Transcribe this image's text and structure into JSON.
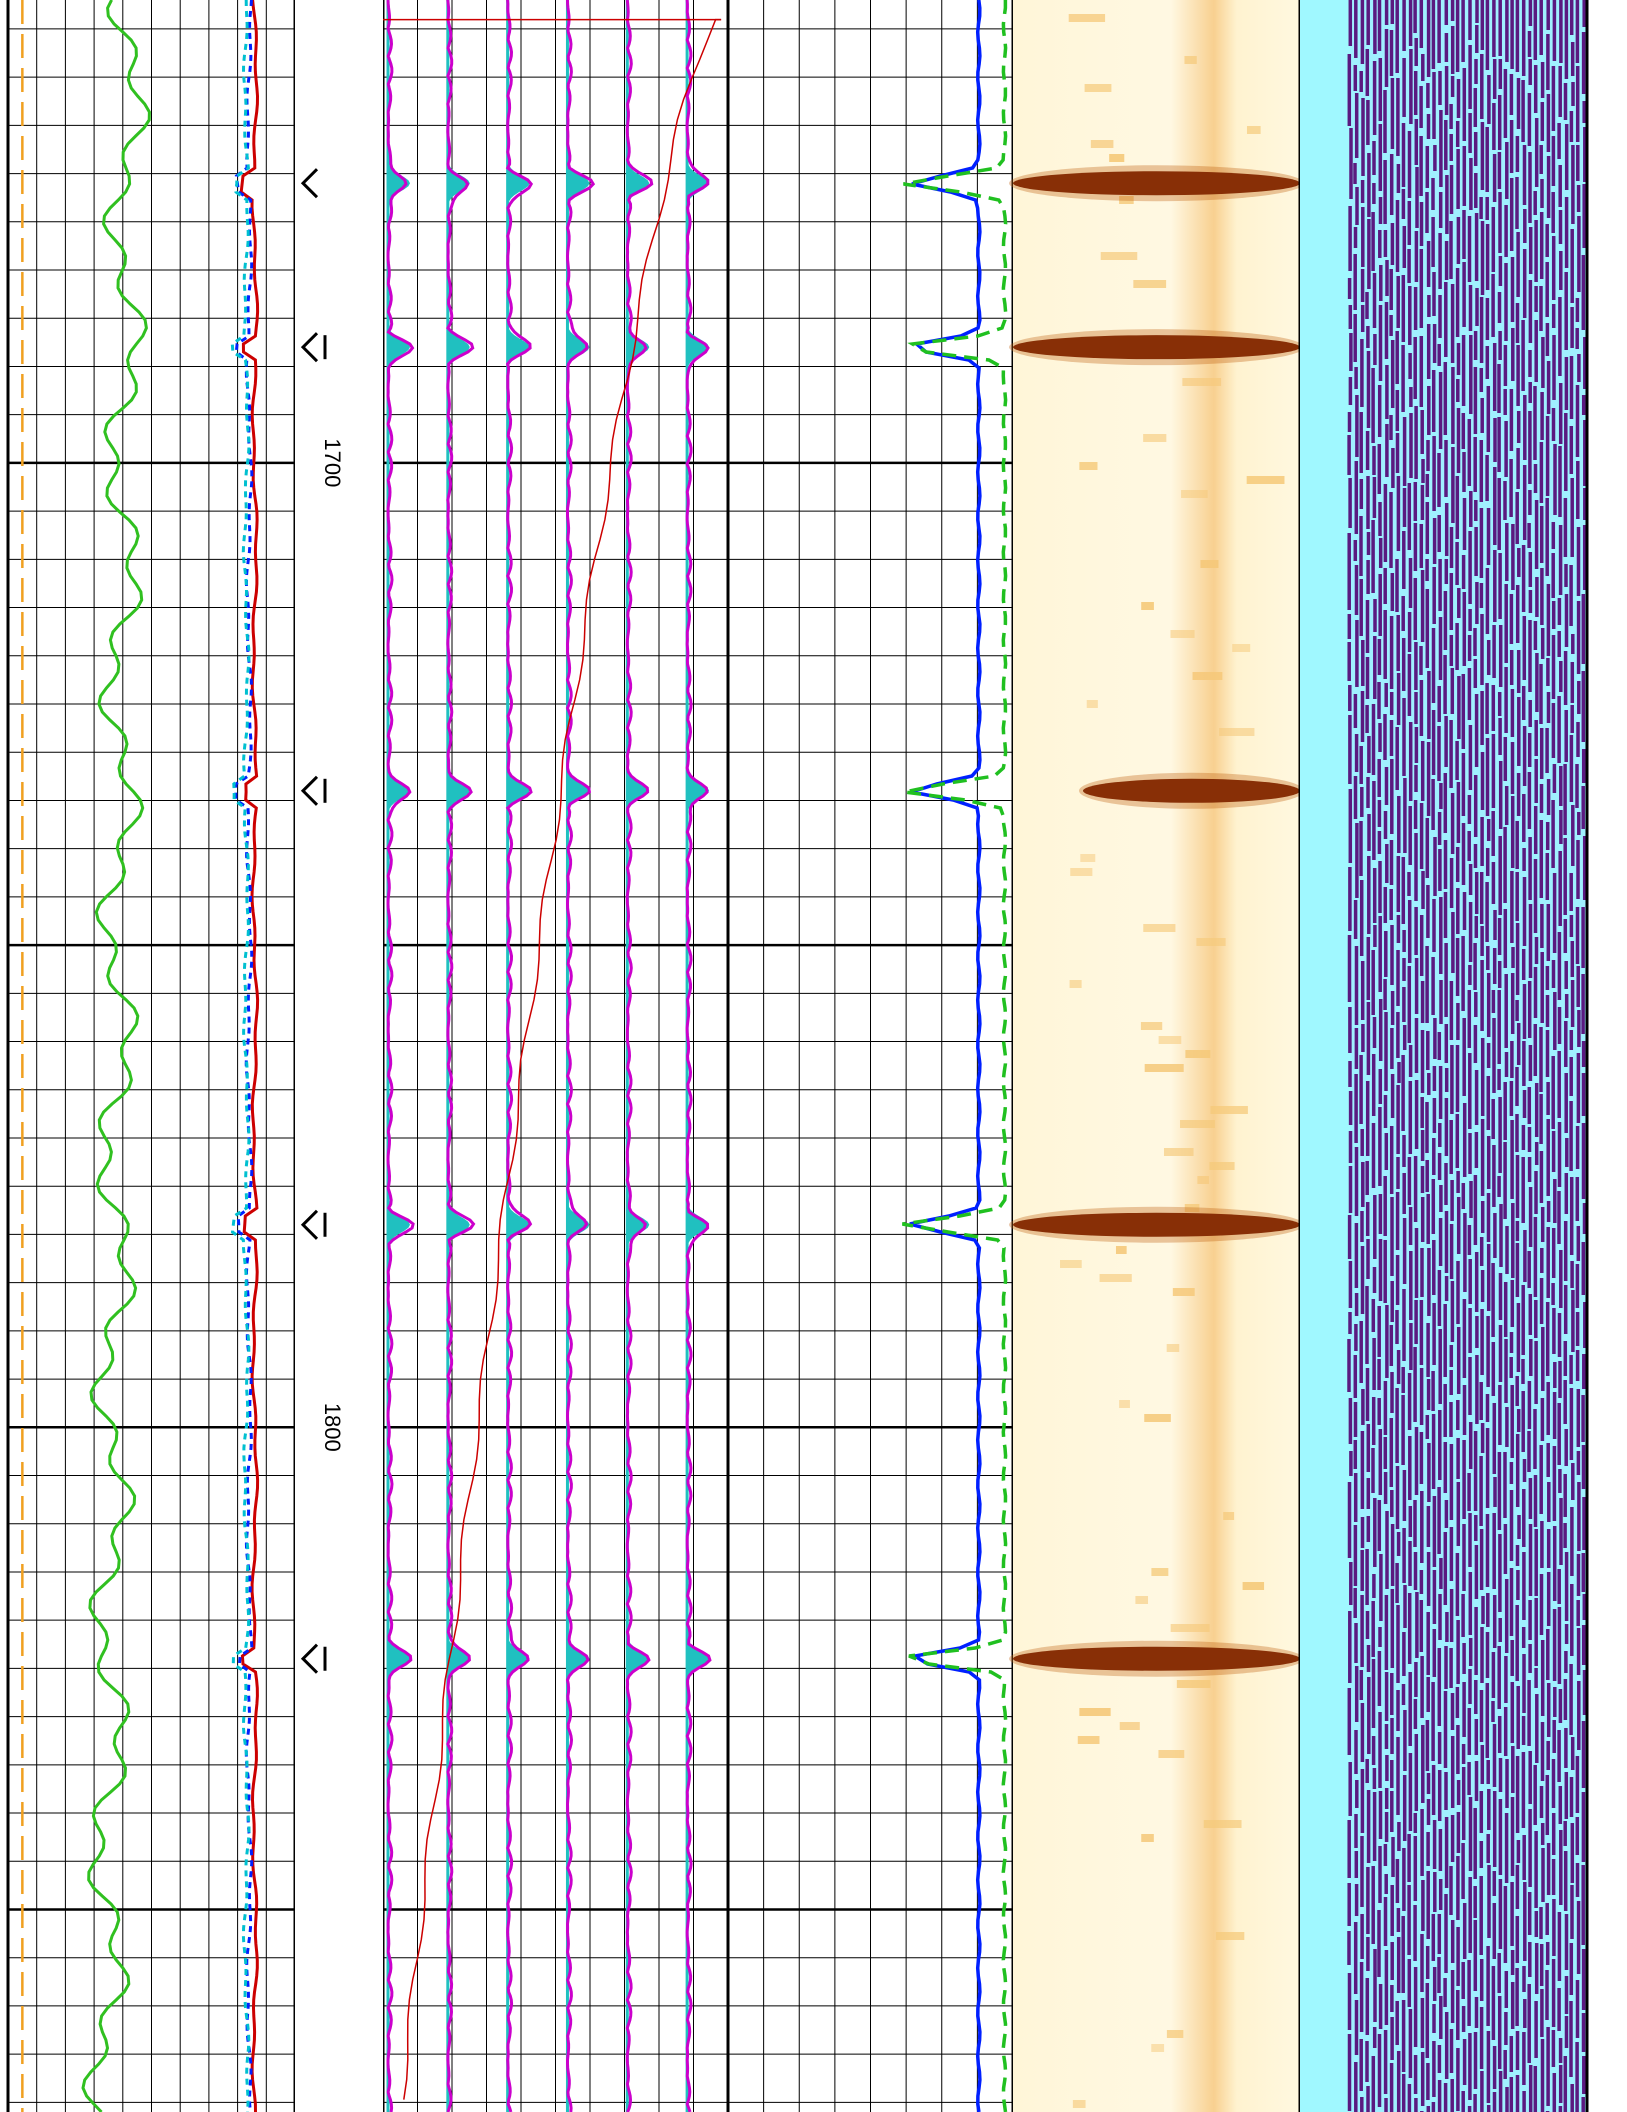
{
  "chart_data": {
    "type": "line",
    "orientation": "vertical-depth",
    "title": "",
    "depth_axis": {
      "labels": [
        "1700",
        "1800"
      ],
      "tick_depths": [
        1700,
        1800
      ],
      "depth_range": [
        1652,
        1871
      ],
      "major_grid_interval": 50,
      "minor_grid_interval": 5
    },
    "collar_depths": [
      1671,
      1688,
      1734,
      1779,
      1824
    ],
    "tracks": [
      {
        "name": "",
        "series": [
          {
            "name": "",
            "kind": "dashed-constant",
            "color": "#f0a020",
            "value": 0.05
          },
          {
            "name": "",
            "kind": "curve",
            "color": "#30c020",
            "base": 0.42,
            "drift": -0.08,
            "noise": 0.08
          },
          {
            "name": "",
            "kind": "curve",
            "color": "#cc0000",
            "base": 0.86,
            "drift": 0.0,
            "noise": 0.01
          },
          {
            "name": "",
            "kind": "dashed-curve",
            "color": "#0020ff",
            "base": 0.84,
            "drift": 0.0,
            "noise": 0.01
          },
          {
            "name": "",
            "kind": "dashed-curve",
            "color": "#00c0d0",
            "base": 0.83,
            "drift": 0.0,
            "noise": 0.01
          }
        ],
        "grid": true
      },
      {
        "name": "",
        "series": [
          {
            "name": "",
            "kind": "waveform",
            "color": "#cc00cc",
            "fill": "#20c0c0",
            "count": 6
          },
          {
            "name": "",
            "kind": "curve",
            "color": "#cc0000",
            "from": [
              0.98,
              1653
            ],
            "to": [
              0.05,
              1871
            ]
          }
        ],
        "grid": true
      },
      {
        "name": "",
        "series": [
          {
            "name": "",
            "kind": "curve",
            "color": "#0020ff",
            "base": 0.88,
            "spike": 0.6
          },
          {
            "name": "",
            "kind": "dashed-curve",
            "color": "#20c020",
            "base": 0.97,
            "spike": 0.9
          }
        ],
        "grid": true
      },
      {
        "name": "",
        "kind": "image-amplitude",
        "colors": [
          "#fff8e0",
          "#f0b040",
          "#5a1000"
        ],
        "dark_band_depths": [
          1671,
          1688,
          1734,
          1779,
          1824
        ]
      },
      {
        "name": "",
        "kind": "fill",
        "color": "#a0f8ff"
      },
      {
        "name": "",
        "kind": "image-variable-density",
        "colors": [
          "#5a1a80",
          "#a0f0ff"
        ]
      }
    ],
    "grid": true
  }
}
